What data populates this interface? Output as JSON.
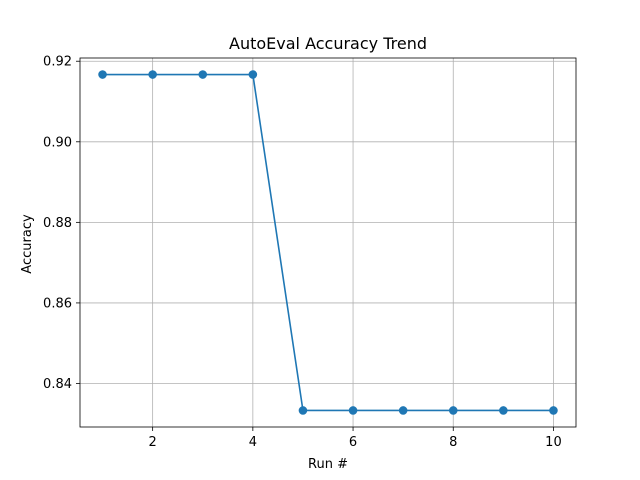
{
  "chart_data": {
    "type": "line",
    "title": "AutoEval Accuracy Trend",
    "xlabel": "Run #",
    "ylabel": "Accuracy",
    "xlim": [
      0.55,
      10.45
    ],
    "ylim": [
      0.8292,
      0.9208
    ],
    "xticks": [
      2,
      4,
      6,
      8,
      10
    ],
    "xtick_labels": [
      "2",
      "4",
      "6",
      "8",
      "10"
    ],
    "yticks": [
      0.84,
      0.86,
      0.88,
      0.9,
      0.92
    ],
    "ytick_labels": [
      "0.84",
      "0.86",
      "0.88",
      "0.90",
      "0.92"
    ],
    "grid": true,
    "legend": false,
    "marker": "circle",
    "colors": {
      "line": "#1f77b4",
      "grid": "#b0b0b0",
      "axes": "#000000"
    },
    "series": [
      {
        "x": [
          1,
          2,
          3,
          4,
          5,
          6,
          7,
          8,
          9,
          10
        ],
        "values": [
          0.9167,
          0.9167,
          0.9167,
          0.9167,
          0.8333,
          0.8333,
          0.8333,
          0.8333,
          0.8333,
          0.8333
        ]
      }
    ]
  }
}
